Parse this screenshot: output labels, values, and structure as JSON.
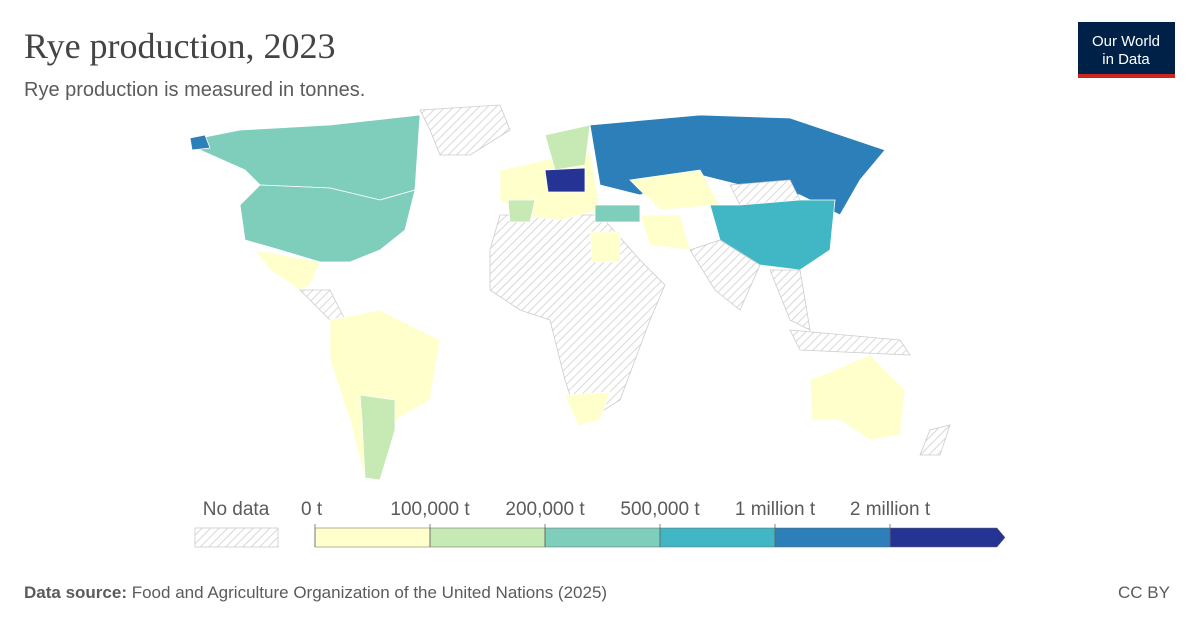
{
  "header": {
    "title": "Rye production, 2023",
    "subtitle": "Rye production is measured in tonnes.",
    "logo": [
      "Our World",
      "in Data"
    ]
  },
  "legend": {
    "no_data": "No data",
    "ticks": [
      {
        "value": 0,
        "label": "0 t"
      },
      {
        "value": 100000,
        "label": "100,000 t"
      },
      {
        "value": 200000,
        "label": "200,000 t"
      },
      {
        "value": 500000,
        "label": "500,000 t"
      },
      {
        "value": 1000000,
        "label": "1 million t"
      },
      {
        "value": 2000000,
        "label": "2 million t"
      }
    ],
    "colors": [
      "#ffffcc",
      "#c7e9b4",
      "#7fcdbb",
      "#41b6c4",
      "#2c7fb8",
      "#253494"
    ]
  },
  "footer": {
    "source_label": "Data source:",
    "source": "Food and Agriculture Organization of the United Nations (2025)",
    "license": "CC BY"
  }
}
